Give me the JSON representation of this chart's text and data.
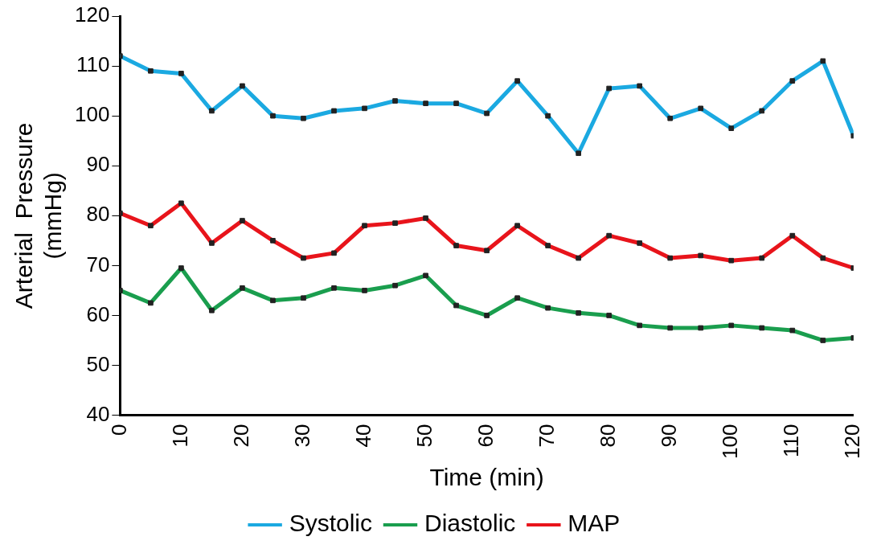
{
  "chart_data": {
    "type": "line",
    "xlabel": "Time (min)",
    "ylabel": "Arterial  Pressure (mmHg)",
    "x": [
      0,
      5,
      10,
      15,
      20,
      25,
      30,
      35,
      40,
      45,
      50,
      55,
      60,
      65,
      70,
      75,
      80,
      85,
      90,
      95,
      100,
      105,
      110,
      115,
      120
    ],
    "series": [
      {
        "name": "Systolic",
        "color": "#1ba9e1",
        "values": [
          112,
          109,
          108.5,
          101,
          106,
          100,
          99.5,
          101,
          101.5,
          103,
          102.5,
          102.5,
          100.5,
          107,
          100,
          92.5,
          105.5,
          106,
          99.5,
          101.5,
          97.5,
          101,
          107,
          111,
          96
        ]
      },
      {
        "name": "Diastolic",
        "color": "#1a9e4e",
        "values": [
          65,
          62.5,
          69.5,
          61,
          65.5,
          63,
          63.5,
          65.5,
          65,
          66,
          68,
          62,
          60,
          63.5,
          61.5,
          60.5,
          60,
          58,
          57.5,
          57.5,
          58,
          57.5,
          57,
          55,
          55.5
        ]
      },
      {
        "name": "MAP",
        "color": "#e8141b",
        "values": [
          80.5,
          78,
          82.5,
          74.5,
          79,
          75,
          71.5,
          72.5,
          78,
          78.5,
          79.5,
          74,
          73,
          78,
          74,
          71.5,
          76,
          74.5,
          71.5,
          72,
          71,
          71.5,
          76,
          71.5,
          69.5
        ]
      }
    ],
    "xlim": [
      0,
      120
    ],
    "xticks": [
      0,
      10,
      20,
      30,
      40,
      50,
      60,
      70,
      80,
      90,
      100,
      110,
      120
    ],
    "ylim": [
      40,
      120
    ],
    "yticks": [
      40,
      50,
      60,
      70,
      80,
      90,
      100,
      110,
      120
    ],
    "grid": false,
    "legend": "bottom",
    "marker": "square",
    "line_style": "solid"
  }
}
